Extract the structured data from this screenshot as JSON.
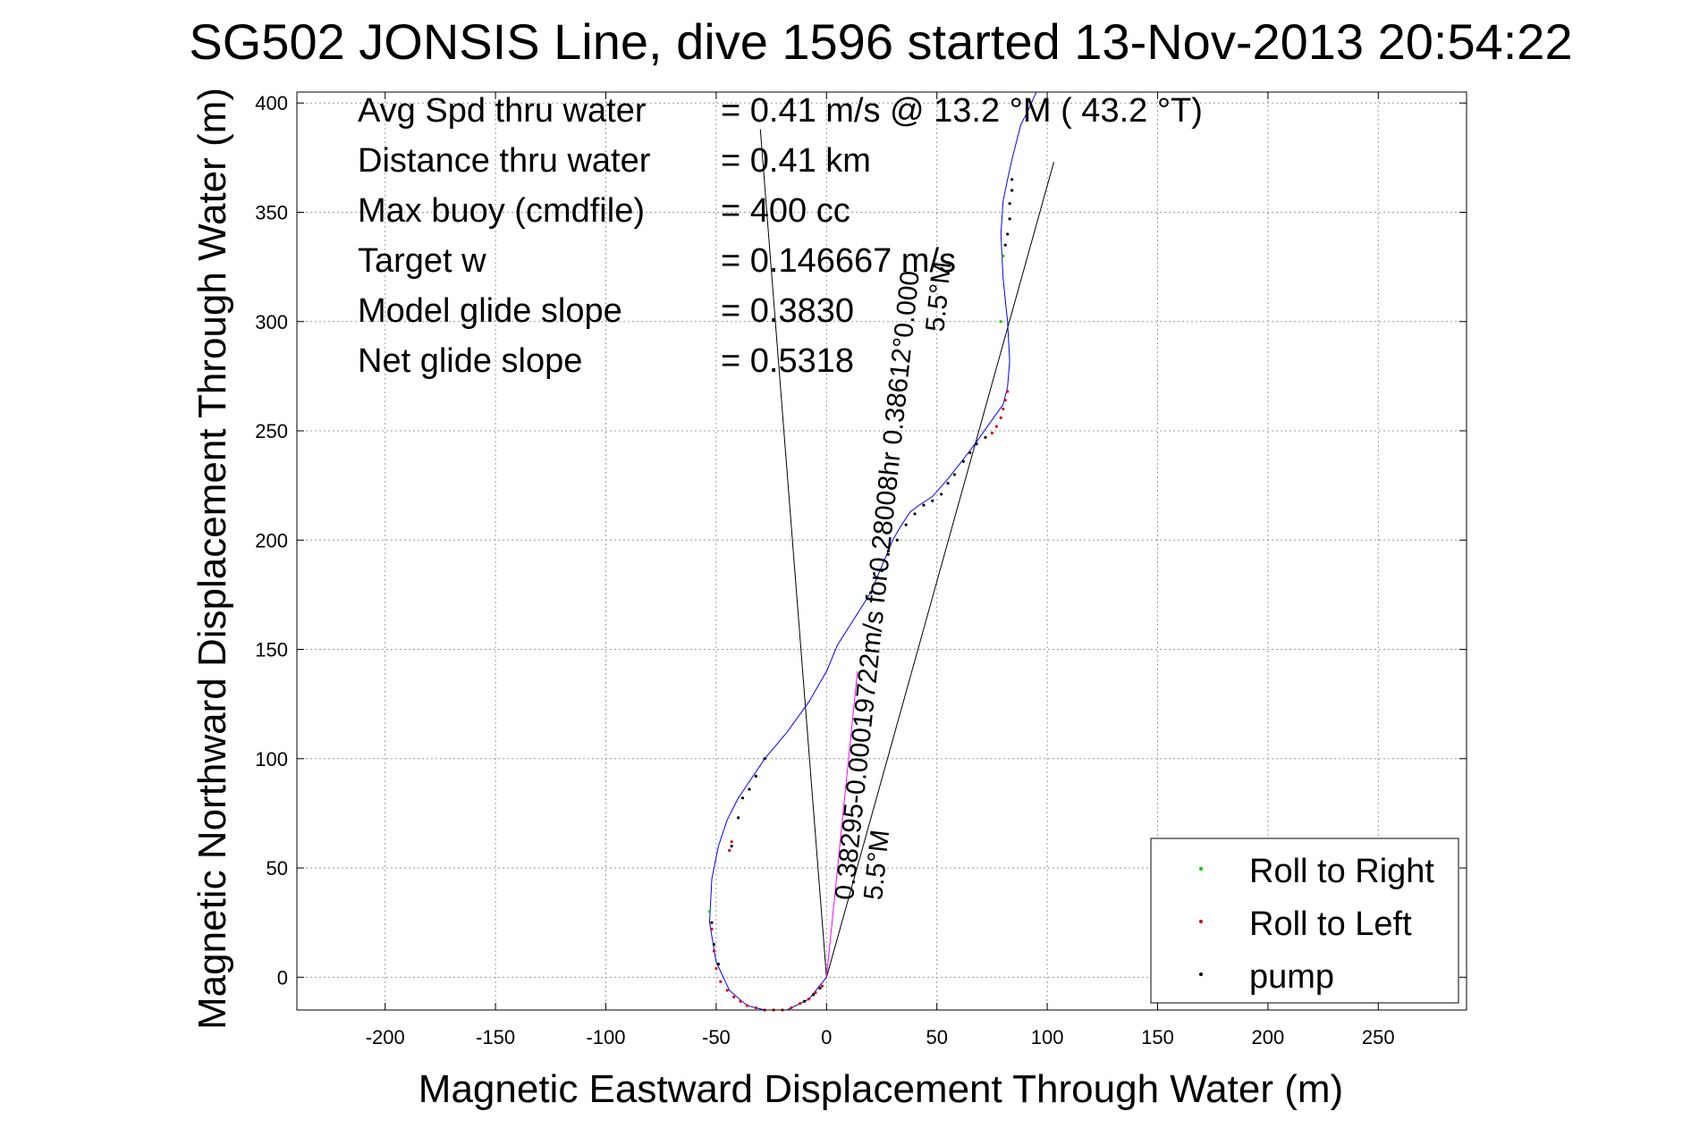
{
  "chart_data": {
    "type": "scatter",
    "title": "SG502 JONSIS Line, dive 1596 started 13-Nov-2013 20:54:22",
    "xlabel": "Magnetic Eastward Displacement Through Water (m)",
    "ylabel": "Magnetic Northward Displacement Through Water (m)",
    "xlim": [
      -240,
      290
    ],
    "ylim": [
      -15,
      405
    ],
    "xticks": [
      -200,
      -150,
      -100,
      -50,
      0,
      50,
      100,
      150,
      200,
      250
    ],
    "yticks": [
      0,
      50,
      100,
      150,
      200,
      250,
      300,
      350,
      400
    ],
    "grid": true,
    "legend_position": "bottom-right",
    "legend": [
      {
        "label": "Roll to Right",
        "color": "#00cc00"
      },
      {
        "label": "Roll to Left",
        "color": "#dd0000"
      },
      {
        "label": "pump",
        "color": "#000000"
      }
    ],
    "info_lines": [
      {
        "label": "Avg Spd thru water",
        "value": "=  0.41 m/s @  13.2 °M ( 43.2 °T)"
      },
      {
        "label": "Distance thru water",
        "value": "=  0.41 km"
      },
      {
        "label": "Max buoy (cmdfile)",
        "value": "= 400 cc"
      },
      {
        "label": "Target w",
        "value": "= 0.146667 m/s"
      },
      {
        "label": "Model glide slope",
        "value": "= 0.3830"
      },
      {
        "label": "Net glide slope",
        "value": "= 0.5318"
      }
    ],
    "annotations": [
      {
        "text": "0.38295-0.00019722m/s for0.28008hr 0.38612°0.000",
        "x": 12,
        "y": 35,
        "angle_deg": -84
      },
      {
        "text": "5.5°M",
        "x": 25,
        "y": 35,
        "angle_deg": -84
      },
      {
        "text": "5.5°M",
        "x": 53,
        "y": 295,
        "angle_deg": -84
      }
    ],
    "series": [
      {
        "name": "Roll to Right",
        "color": "#0000ff",
        "x": [
          0,
          -8,
          -18,
          -28,
          -36,
          -44,
          -50,
          -53,
          -52,
          -49,
          -45,
          -40,
          -36,
          -28,
          -18,
          -8,
          0,
          5,
          20,
          30,
          34,
          38,
          42,
          48,
          55,
          62,
          68,
          75,
          80,
          82,
          83,
          82,
          80,
          79,
          80,
          82,
          84,
          86,
          88,
          92,
          95
        ],
        "y": [
          0,
          -10,
          -15,
          -15,
          -13,
          -6,
          7,
          25,
          45,
          60,
          72,
          82,
          88,
          100,
          112,
          126,
          140,
          152,
          176,
          200,
          207,
          213,
          216,
          220,
          228,
          237,
          245,
          255,
          262,
          270,
          282,
          300,
          320,
          340,
          355,
          365,
          374,
          382,
          390,
          398,
          405
        ]
      },
      {
        "name": "Roll to Left",
        "color": "#ff00ff",
        "x": [
          0,
          2,
          4,
          6,
          8,
          10,
          12,
          14
        ],
        "y": [
          0,
          20,
          40,
          60,
          80,
          100,
          120,
          140
        ]
      }
    ],
    "lines": [
      {
        "x": [
          0,
          -30
        ],
        "y": [
          0,
          388
        ],
        "color": "#000000"
      },
      {
        "x": [
          0,
          103
        ],
        "y": [
          0,
          373
        ],
        "color": "#000000"
      }
    ],
    "markers": {
      "red": [
        [
          -52,
          22
        ],
        [
          -51,
          12
        ],
        [
          -50,
          4
        ],
        [
          -48,
          -2
        ],
        [
          -45,
          -6
        ],
        [
          -42,
          -9
        ],
        [
          -39,
          -11
        ],
        [
          -36,
          -13
        ],
        [
          -32,
          -14
        ],
        [
          -28,
          -15
        ],
        [
          -24,
          -15
        ],
        [
          -20,
          -15
        ],
        [
          -16,
          -14
        ],
        [
          -12,
          -12
        ],
        [
          -8,
          -10
        ],
        [
          -5,
          -7
        ],
        [
          -2,
          -4
        ],
        [
          -44,
          58
        ],
        [
          -43,
          62
        ],
        [
          82,
          268
        ],
        [
          81,
          264
        ],
        [
          80,
          260
        ],
        [
          79,
          256
        ],
        [
          77,
          252
        ],
        [
          75,
          249
        ]
      ],
      "green": [
        [
          -53,
          30
        ],
        [
          80,
          330
        ],
        [
          79,
          300
        ]
      ],
      "black": [
        [
          -52,
          25
        ],
        [
          -51,
          15
        ],
        [
          -49,
          6
        ],
        [
          -43,
          60
        ],
        [
          -40,
          73
        ],
        [
          -38,
          82
        ],
        [
          -35,
          86
        ],
        [
          -32,
          92
        ],
        [
          -28,
          100
        ],
        [
          20,
          176
        ],
        [
          25,
          186
        ],
        [
          28,
          195
        ],
        [
          32,
          200
        ],
        [
          36,
          207
        ],
        [
          40,
          212
        ],
        [
          44,
          216
        ],
        [
          48,
          218
        ],
        [
          52,
          221
        ],
        [
          55,
          226
        ],
        [
          58,
          230
        ],
        [
          62,
          236
        ],
        [
          65,
          240
        ],
        [
          68,
          244
        ],
        [
          72,
          247
        ],
        [
          83,
          347
        ],
        [
          83,
          354
        ],
        [
          84,
          360
        ],
        [
          84,
          365
        ],
        [
          82,
          340
        ],
        [
          81,
          335
        ],
        [
          -10,
          -11
        ],
        [
          -6,
          -8
        ],
        [
          -3,
          -5
        ]
      ]
    }
  }
}
